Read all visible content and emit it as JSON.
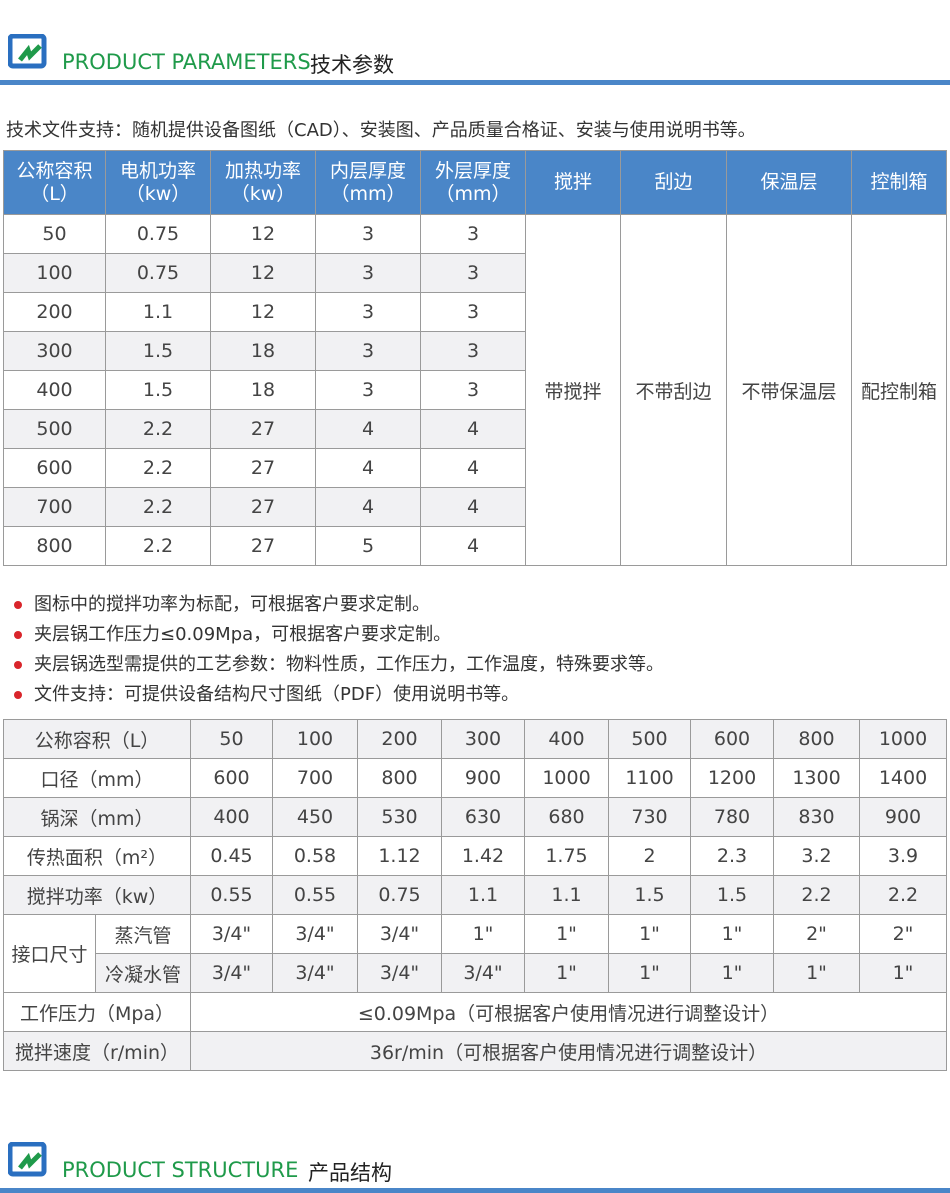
{
  "section1": {
    "en": "PRODUCT PARAMETERS",
    "cn": "技术参数"
  },
  "note": "技术文件支持：随机提供设备图纸（CAD）、安装图、产品质量合格证、安装与使用说明书等。",
  "table1": {
    "headers": [
      [
        "公称容积",
        "（L）"
      ],
      [
        "电机功率",
        "（kw）"
      ],
      [
        "加热功率",
        "（kw）"
      ],
      [
        "内层厚度",
        "（mm）"
      ],
      [
        "外层厚度",
        "（mm）"
      ],
      [
        "搅拌"
      ],
      [
        "刮边"
      ],
      [
        "保温层"
      ],
      [
        "控制箱"
      ]
    ],
    "rows": [
      [
        "50",
        "0.75",
        "12",
        "3",
        "3"
      ],
      [
        "100",
        "0.75",
        "12",
        "3",
        "3"
      ],
      [
        "200",
        "1.1",
        "12",
        "3",
        "3"
      ],
      [
        "300",
        "1.5",
        "18",
        "3",
        "3"
      ],
      [
        "400",
        "1.5",
        "18",
        "3",
        "3"
      ],
      [
        "500",
        "2.2",
        "27",
        "4",
        "4"
      ],
      [
        "600",
        "2.2",
        "27",
        "4",
        "4"
      ],
      [
        "700",
        "2.2",
        "27",
        "4",
        "4"
      ],
      [
        "800",
        "2.2",
        "27",
        "5",
        "4"
      ]
    ],
    "merged": [
      "带搅拌",
      "不带刮边",
      "不带保温层",
      "配控制箱"
    ]
  },
  "bullets": [
    "图标中的搅拌功率为标配，可根据客户要求定制。",
    "夹层锅工作压力≤0.09Mpa，可根据客户要求定制。",
    "夹层锅选型需提供的工艺参数：物料性质，工作压力，工作温度，特殊要求等。",
    "文件支持：可提供设备结构尺寸图纸（PDF）使用说明书等。"
  ],
  "table2": {
    "rows": [
      {
        "label": "公称容积（L）",
        "values": [
          "50",
          "100",
          "200",
          "300",
          "400",
          "500",
          "600",
          "800",
          "1000"
        ]
      },
      {
        "label": "口径（mm）",
        "values": [
          "600",
          "700",
          "800",
          "900",
          "1000",
          "1100",
          "1200",
          "1300",
          "1400"
        ]
      },
      {
        "label": "锅深（mm）",
        "values": [
          "400",
          "450",
          "530",
          "630",
          "680",
          "730",
          "780",
          "830",
          "900"
        ]
      },
      {
        "label": "传热面积（m²）",
        "values": [
          "0.45",
          "0.58",
          "1.12",
          "1.42",
          "1.75",
          "2",
          "2.3",
          "3.2",
          "3.9"
        ]
      },
      {
        "label": "搅拌功率（kw）",
        "values": [
          "0.55",
          "0.55",
          "0.75",
          "1.1",
          "1.1",
          "1.5",
          "1.5",
          "2.2",
          "2.2"
        ]
      }
    ],
    "port_label": "接口尺寸",
    "port_rows": [
      {
        "label": "蒸汽管",
        "values": [
          "3/4\"",
          "3/4\"",
          "3/4\"",
          "1\"",
          "1\"",
          "1\"",
          "1\"",
          "2\"",
          "2\""
        ]
      },
      {
        "label": "冷凝水管",
        "values": [
          "3/4\"",
          "3/4\"",
          "3/4\"",
          "3/4\"",
          "1\"",
          "1\"",
          "1\"",
          "1\"",
          "1\""
        ]
      }
    ],
    "span_rows": [
      {
        "label": "工作压力（Mpa）",
        "value": "≤0.09Mpa（可根据客户使用情况进行调整设计）"
      },
      {
        "label": "搅拌速度（r/min）",
        "value": "36r/min（可根据客户使用情况进行调整设计）"
      }
    ]
  },
  "section2": {
    "en": "PRODUCT STRUCTURE",
    "cn": "产品结构"
  },
  "colors": {
    "accent": "#4a86c8",
    "title_green": "#1f9a4a",
    "bullet": "#d9252b"
  }
}
